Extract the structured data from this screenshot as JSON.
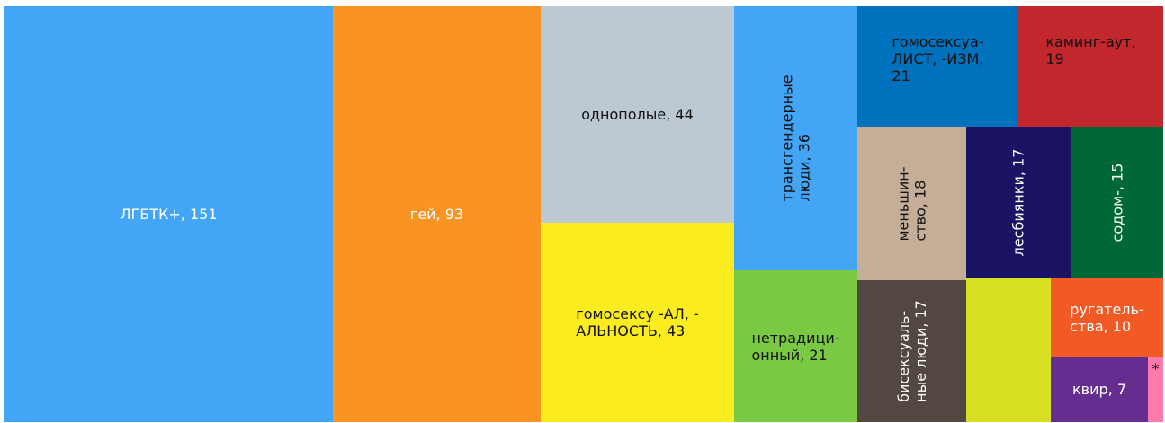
{
  "chart_data": {
    "type": "treemap",
    "labels": [
      "ЛГБТК+, 151",
      "гей, 93",
      "однополые, 44",
      "гомосексу -АЛ, -\nАЛЬНОСТЬ, 43",
      "трансгендерные\nлюди, 36",
      "нетрадици-\nонный, 21",
      "гомосексуа-\nЛИСТ, -ИЗМ,\n21",
      "каминг-аут,\n19",
      "меньшин-\nство, 18",
      "лесбиянки, 17",
      "содом-, 15",
      "бисексуаль-\nные люди, 17",
      null,
      "ругатель-\nства, 10",
      "квир, 7",
      "*"
    ],
    "values": [
      151,
      93,
      44,
      43,
      36,
      21,
      21,
      19,
      18,
      17,
      15,
      17,
      13,
      10,
      7,
      1
    ],
    "colors": [
      "#42a5f5",
      "#fb9322",
      "#bdc9d2",
      "#fbec1f",
      "#42a5f5",
      "#7ac943",
      "#0071bc",
      "#c1272d",
      "#c5ae97",
      "#1b1464",
      "#006837",
      "#534741",
      "#d9e021",
      "#f15a24",
      "#662d91",
      "#ff7bac"
    ],
    "label_colors": [
      "#ffffff",
      "#ffffff",
      "#111111",
      "#111111",
      "#111111",
      "#111111",
      "#111111",
      "#111111",
      "#111111",
      "#ffffff",
      "#ffffff",
      "#ffffff",
      "#111111",
      "#ffffff",
      "#ffffff",
      "#111111"
    ]
  }
}
